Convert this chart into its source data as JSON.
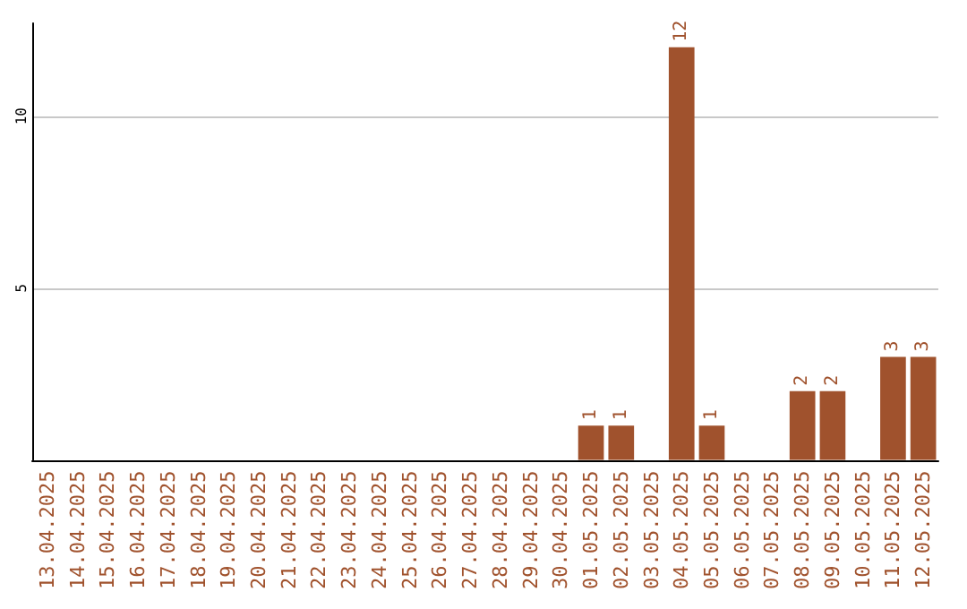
{
  "chart_data": {
    "type": "bar",
    "categories": [
      "13.04.2025",
      "14.04.2025",
      "15.04.2025",
      "16.04.2025",
      "17.04.2025",
      "18.04.2025",
      "19.04.2025",
      "20.04.2025",
      "21.04.2025",
      "22.04.2025",
      "23.04.2025",
      "24.04.2025",
      "25.04.2025",
      "26.04.2025",
      "27.04.2025",
      "28.04.2025",
      "29.04.2025",
      "30.04.2025",
      "01.05.2025",
      "02.05.2025",
      "03.05.2025",
      "04.05.2025",
      "05.05.2025",
      "06.05.2025",
      "07.05.2025",
      "08.05.2025",
      "09.05.2025",
      "10.05.2025",
      "11.05.2025",
      "12.05.2025"
    ],
    "values": [
      0,
      0,
      0,
      0,
      0,
      0,
      0,
      0,
      0,
      0,
      0,
      0,
      0,
      0,
      0,
      0,
      0,
      0,
      1,
      1,
      0,
      12,
      1,
      0,
      0,
      2,
      2,
      0,
      3,
      3
    ],
    "value_labels": [
      null,
      null,
      null,
      null,
      null,
      null,
      null,
      null,
      null,
      null,
      null,
      null,
      null,
      null,
      null,
      null,
      null,
      null,
      "1",
      "1",
      null,
      "12",
      "1",
      null,
      null,
      "2",
      "2",
      null,
      "3",
      "3"
    ],
    "color": "#a0522d",
    "ylim": [
      0,
      12.7
    ],
    "yticks": [
      5,
      10
    ],
    "grid": "y"
  }
}
